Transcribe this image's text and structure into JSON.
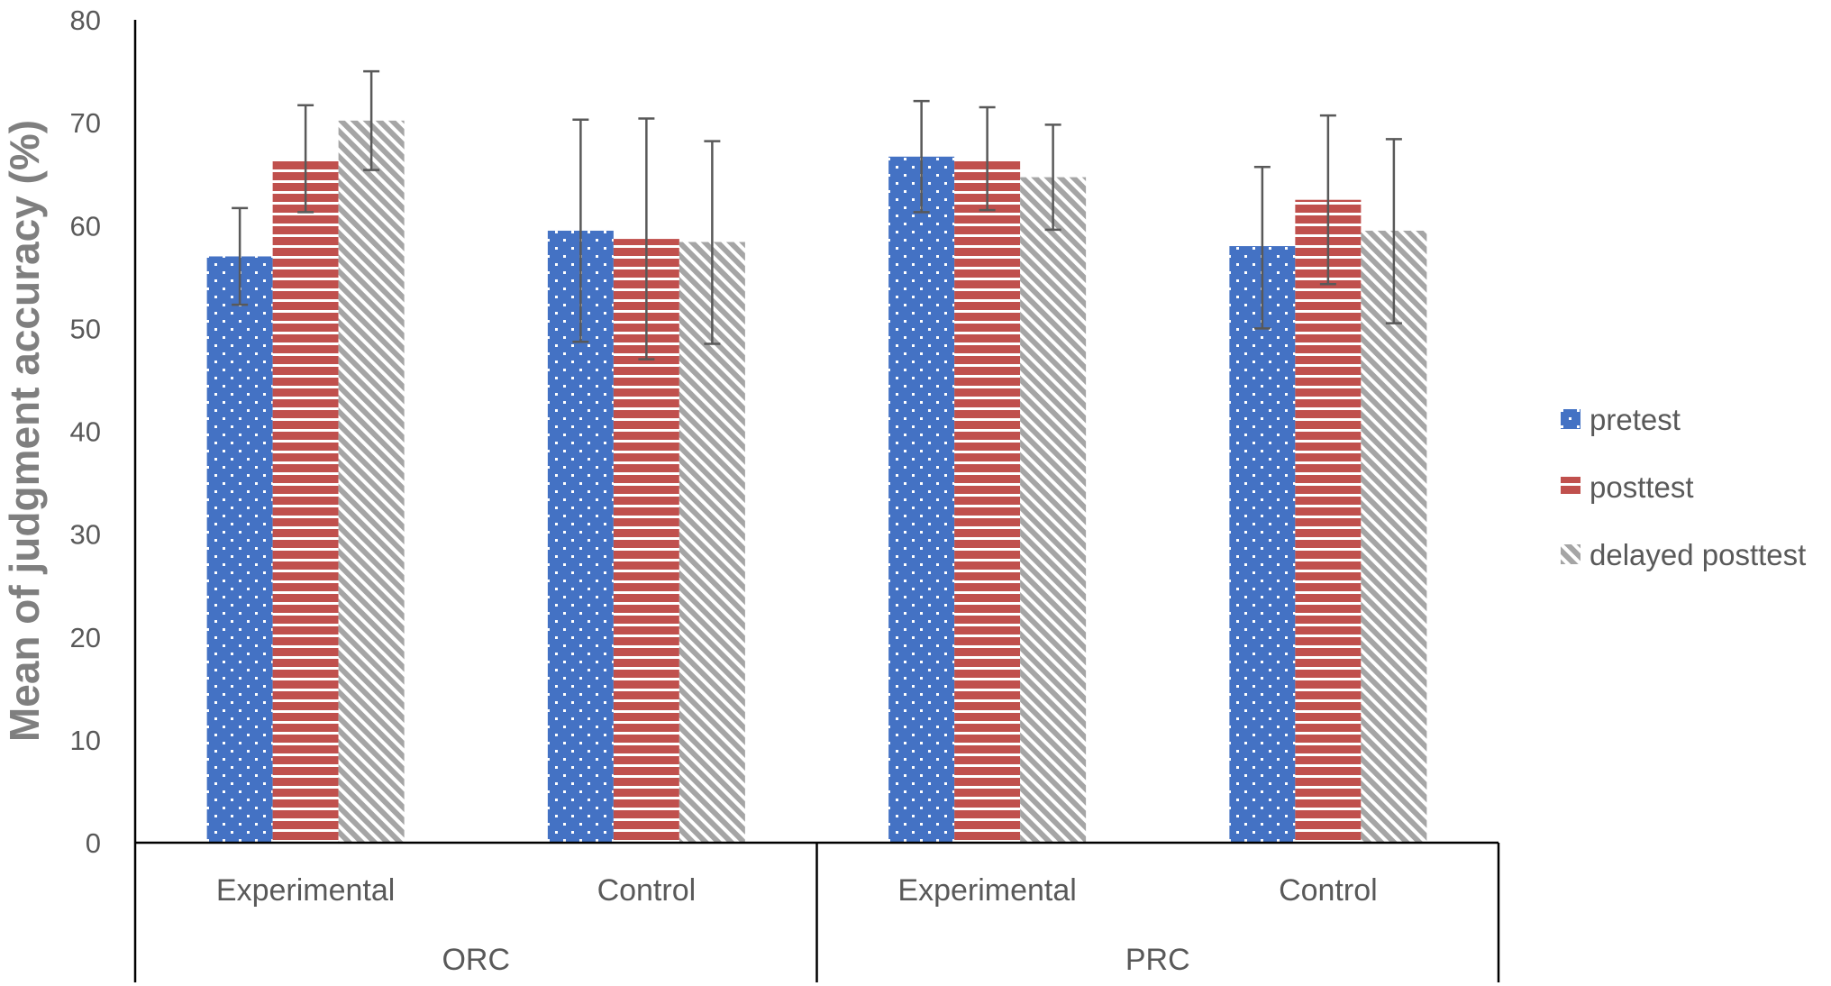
{
  "chart_data": {
    "type": "bar",
    "ylabel": "Mean of judgment accuracy (%)",
    "xlabel": "",
    "ylim": [
      0,
      80
    ],
    "yticks": [
      0,
      10,
      20,
      30,
      40,
      50,
      60,
      70,
      80
    ],
    "grid": false,
    "legend_position": "right",
    "groups": [
      {
        "label": "ORC",
        "categories": [
          "Experimental",
          "Control"
        ]
      },
      {
        "label": "PRC",
        "categories": [
          "Experimental",
          "Control"
        ]
      }
    ],
    "categories": [
      "Experimental",
      "Control",
      "Experimental",
      "Control"
    ],
    "series": [
      {
        "name": "pretest",
        "color": "#4472c4",
        "pattern": "dots",
        "values": [
          57.0,
          59.5,
          66.7,
          58.0
        ],
        "error_low": [
          52.3,
          48.7,
          61.3,
          50.0
        ],
        "error_high": [
          61.7,
          70.3,
          72.1,
          65.7
        ]
      },
      {
        "name": "posttest",
        "color": "#c0504d",
        "pattern": "horizontal-stripes",
        "values": [
          66.5,
          58.7,
          66.5,
          62.5
        ],
        "error_low": [
          61.3,
          47.0,
          61.5,
          54.3
        ],
        "error_high": [
          71.7,
          70.4,
          71.5,
          70.7
        ]
      },
      {
        "name": "delayed posttest",
        "color": "#a5a5a5",
        "pattern": "diagonal-stripes",
        "values": [
          70.2,
          58.4,
          64.7,
          59.5
        ],
        "error_low": [
          65.4,
          48.5,
          59.6,
          50.5
        ],
        "error_high": [
          75.0,
          68.2,
          69.8,
          68.4
        ]
      }
    ]
  }
}
